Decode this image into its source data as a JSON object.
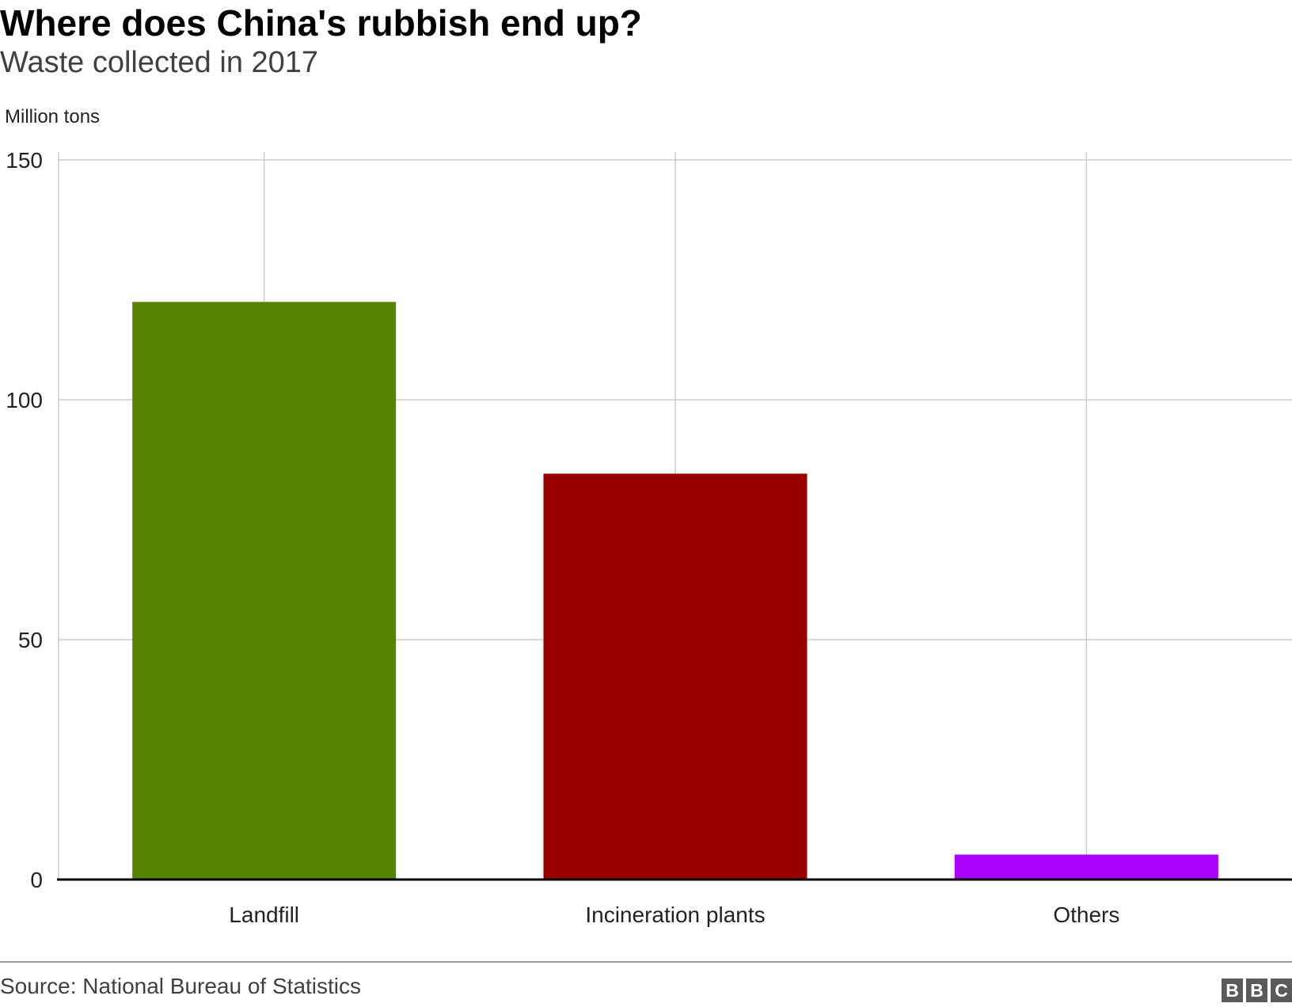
{
  "header": {
    "title": "Where does China's rubbish end up?",
    "subtitle": "Waste collected in 2017",
    "unit_label": "Million tons"
  },
  "footer": {
    "source": "Source: National Bureau of Statistics",
    "logo_letters": [
      "B",
      "B",
      "C"
    ]
  },
  "chart_data": {
    "type": "bar",
    "title": "Where does China's rubbish end up?",
    "subtitle": "Waste collected in 2017",
    "ylabel": "Million tons",
    "xlabel": "",
    "categories": [
      "Landfill",
      "Incineration plants",
      "Others"
    ],
    "values": [
      120.4,
      84.6,
      5.2
    ],
    "colors": [
      "#588300",
      "#990000",
      "#aa00ff"
    ],
    "ylim": [
      0,
      150
    ],
    "yticks": [
      0,
      50,
      100,
      150
    ],
    "grid": true,
    "legend": "none"
  }
}
